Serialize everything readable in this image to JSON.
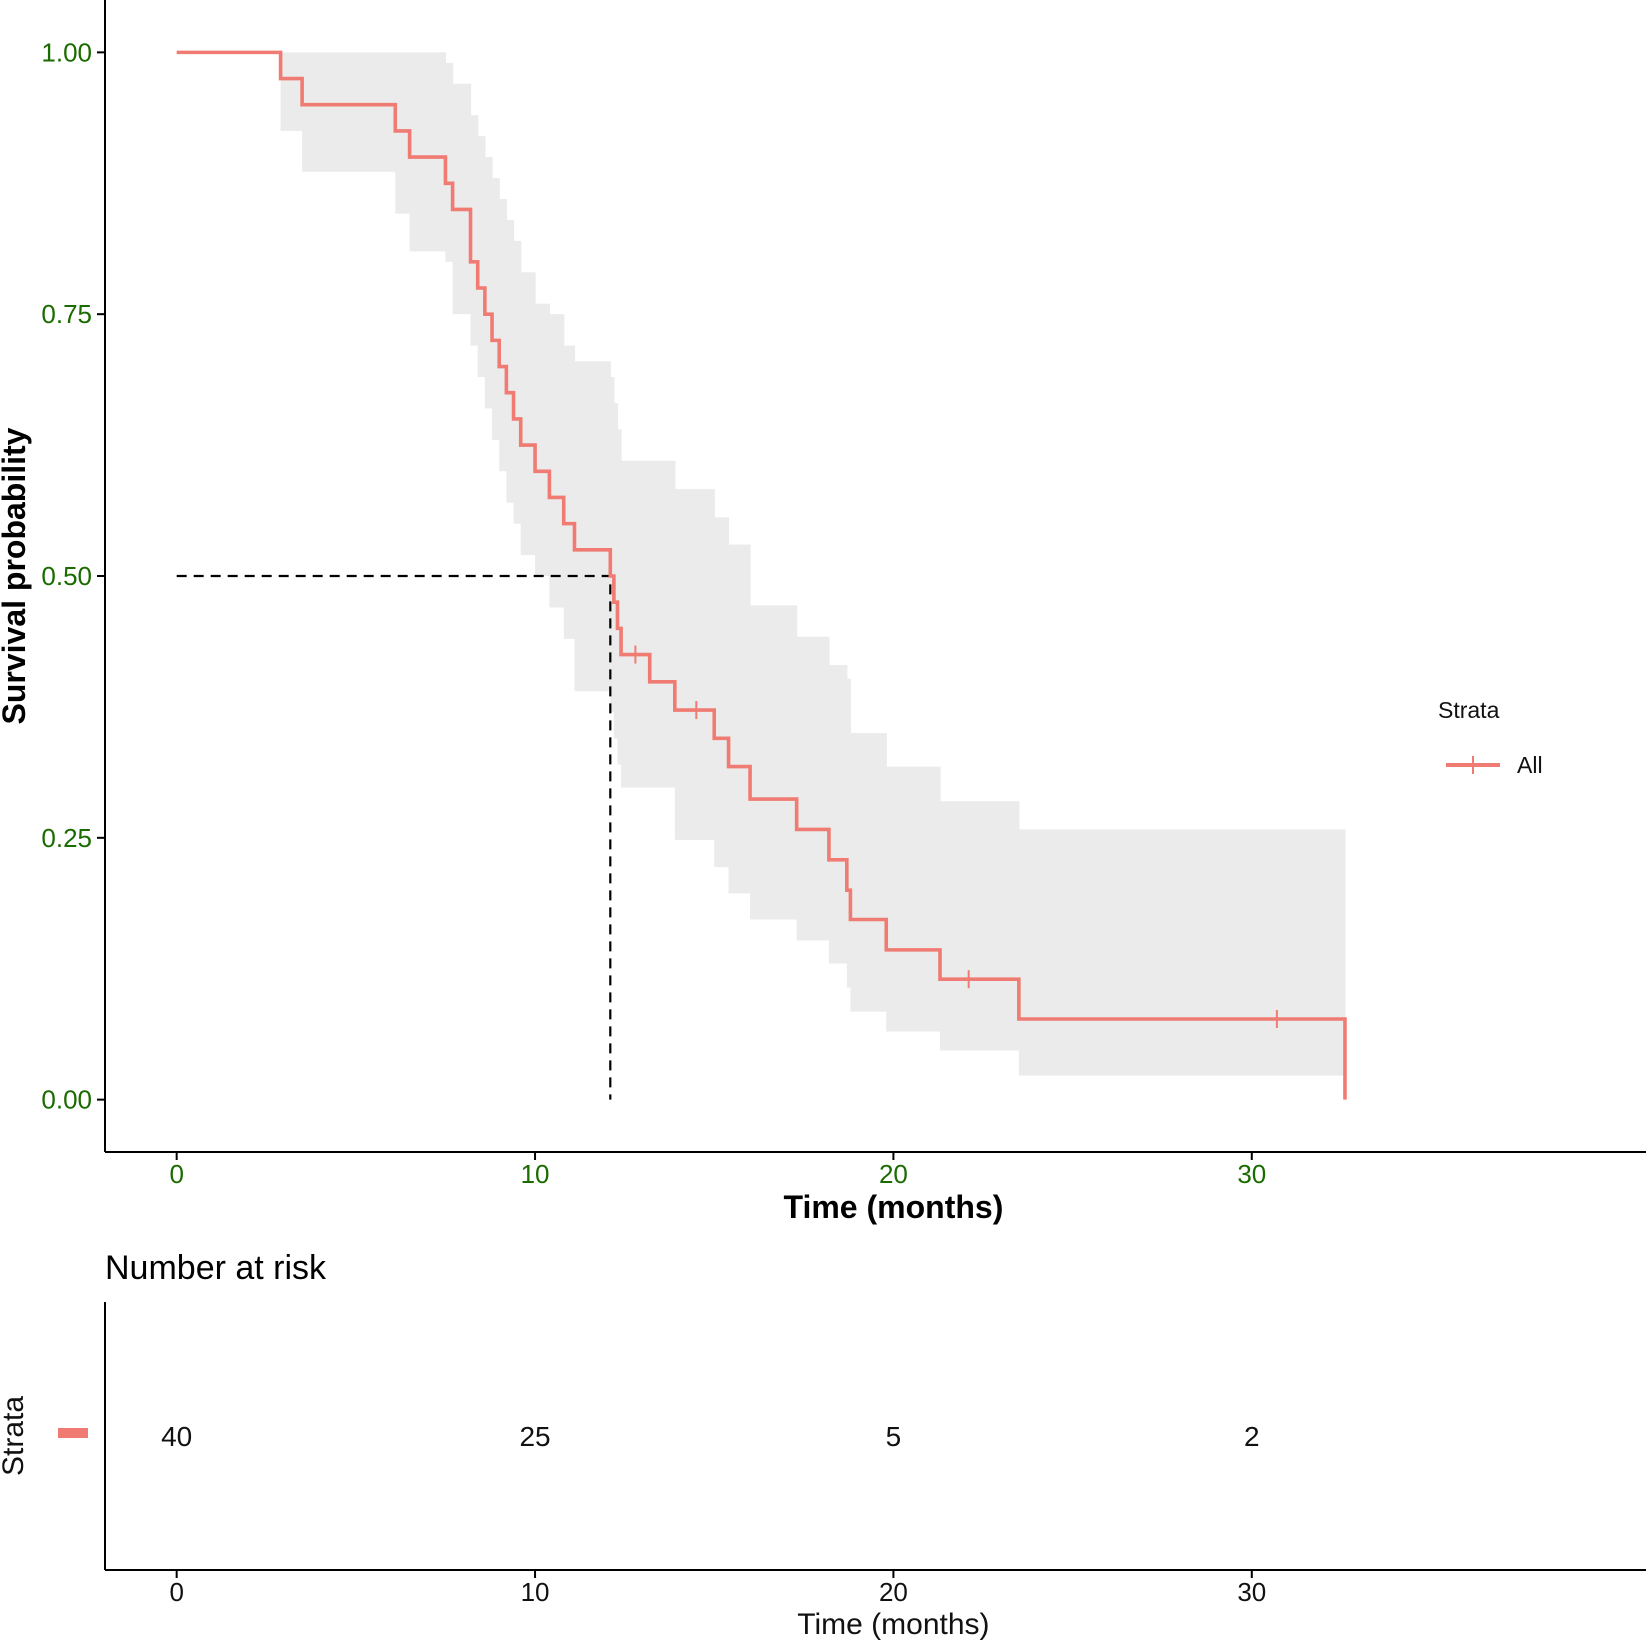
{
  "chart_data": {
    "type": "line",
    "subtype": "kaplan-meier",
    "title": "",
    "xlabel": "Time (months)",
    "ylabel": "Survival probability",
    "xlim": [
      -2,
      41
    ],
    "ylim": [
      -0.05,
      1.05
    ],
    "x_ticks": [
      0,
      10,
      20,
      30
    ],
    "x_tick_labels": [
      "0",
      "10",
      "20",
      "30"
    ],
    "y_ticks": [
      0,
      0.25,
      0.5,
      0.75,
      1.0
    ],
    "y_tick_labels": [
      "0.00",
      "0.25",
      "0.50",
      "0.75",
      "1.00"
    ],
    "colors": {
      "series": "#f07b72",
      "ci": "#ebebeb",
      "tick": "#1a6b00",
      "median": "#000000"
    },
    "median": {
      "x": 12.1,
      "y": 0.5
    },
    "series": [
      {
        "name": "All",
        "steps": [
          [
            0,
            1.0
          ],
          [
            2.9,
            0.975
          ],
          [
            3.5,
            0.95
          ],
          [
            6.1,
            0.925
          ],
          [
            6.5,
            0.9
          ],
          [
            7.5,
            0.875
          ],
          [
            7.7,
            0.85
          ],
          [
            8.2,
            0.8
          ],
          [
            8.4,
            0.775
          ],
          [
            8.6,
            0.75
          ],
          [
            8.8,
            0.725
          ],
          [
            9.0,
            0.7
          ],
          [
            9.2,
            0.675
          ],
          [
            9.4,
            0.65
          ],
          [
            9.6,
            0.625
          ],
          [
            10.0,
            0.6
          ],
          [
            10.4,
            0.575
          ],
          [
            10.8,
            0.55
          ],
          [
            11.1,
            0.525
          ],
          [
            12.1,
            0.5
          ],
          [
            12.2,
            0.475
          ],
          [
            12.3,
            0.45
          ],
          [
            12.4,
            0.425
          ],
          [
            13.2,
            0.399
          ],
          [
            13.9,
            0.372
          ],
          [
            15.0,
            0.345
          ],
          [
            15.4,
            0.318
          ],
          [
            16.0,
            0.287
          ],
          [
            17.3,
            0.258
          ],
          [
            18.2,
            0.229
          ],
          [
            18.7,
            0.2
          ],
          [
            18.8,
            0.172
          ],
          [
            19.8,
            0.143
          ],
          [
            21.3,
            0.115
          ],
          [
            23.5,
            0.077
          ],
          [
            32.6,
            0.0
          ]
        ],
        "end": 32.6,
        "censored": [
          {
            "x": 12.8,
            "y": 0.425
          },
          {
            "x": 14.5,
            "y": 0.372
          },
          {
            "x": 22.1,
            "y": 0.115
          },
          {
            "x": 30.7,
            "y": 0.077
          }
        ],
        "ci_bands": [
          [
            0,
            1.0,
            1.0
          ],
          [
            2.9,
            0.925,
            1.0
          ],
          [
            3.5,
            0.886,
            1.0
          ],
          [
            6.1,
            0.846,
            1.0
          ],
          [
            6.5,
            0.81,
            1.0
          ],
          [
            7.5,
            0.8,
            0.99
          ],
          [
            7.7,
            0.75,
            0.97
          ],
          [
            8.2,
            0.72,
            0.94
          ],
          [
            8.4,
            0.69,
            0.92
          ],
          [
            8.6,
            0.66,
            0.9
          ],
          [
            8.8,
            0.63,
            0.88
          ],
          [
            9.0,
            0.6,
            0.86
          ],
          [
            9.2,
            0.57,
            0.84
          ],
          [
            9.4,
            0.55,
            0.82
          ],
          [
            9.6,
            0.52,
            0.79
          ],
          [
            10.0,
            0.5,
            0.76
          ],
          [
            10.4,
            0.47,
            0.75
          ],
          [
            10.8,
            0.44,
            0.72
          ],
          [
            11.1,
            0.39,
            0.705
          ],
          [
            12.1,
            0.37,
            0.69
          ],
          [
            12.2,
            0.345,
            0.665
          ],
          [
            12.3,
            0.32,
            0.64
          ],
          [
            12.4,
            0.298,
            0.61
          ],
          [
            13.2,
            0.298,
            0.61
          ],
          [
            13.9,
            0.248,
            0.583
          ],
          [
            15.0,
            0.222,
            0.556
          ],
          [
            15.4,
            0.197,
            0.53
          ],
          [
            16.0,
            0.172,
            0.472
          ],
          [
            17.3,
            0.152,
            0.442
          ],
          [
            18.2,
            0.13,
            0.415
          ],
          [
            18.7,
            0.107,
            0.402
          ],
          [
            18.8,
            0.084,
            0.35
          ],
          [
            19.8,
            0.065,
            0.318
          ],
          [
            21.3,
            0.047,
            0.285
          ],
          [
            23.5,
            0.023,
            0.258
          ],
          [
            32.6,
            0.023,
            0.258
          ]
        ]
      }
    ],
    "legend": {
      "title": "Strata",
      "entries": [
        "All"
      ],
      "position": "right"
    },
    "risk_table": {
      "title": "Number at risk",
      "ylabel": "Strata",
      "xlabel": "Time (months)",
      "times": [
        0,
        10,
        20,
        30
      ],
      "time_labels": [
        "0",
        "10",
        "20",
        "30"
      ],
      "counts": [
        "40",
        "25",
        "5",
        "2"
      ]
    }
  }
}
